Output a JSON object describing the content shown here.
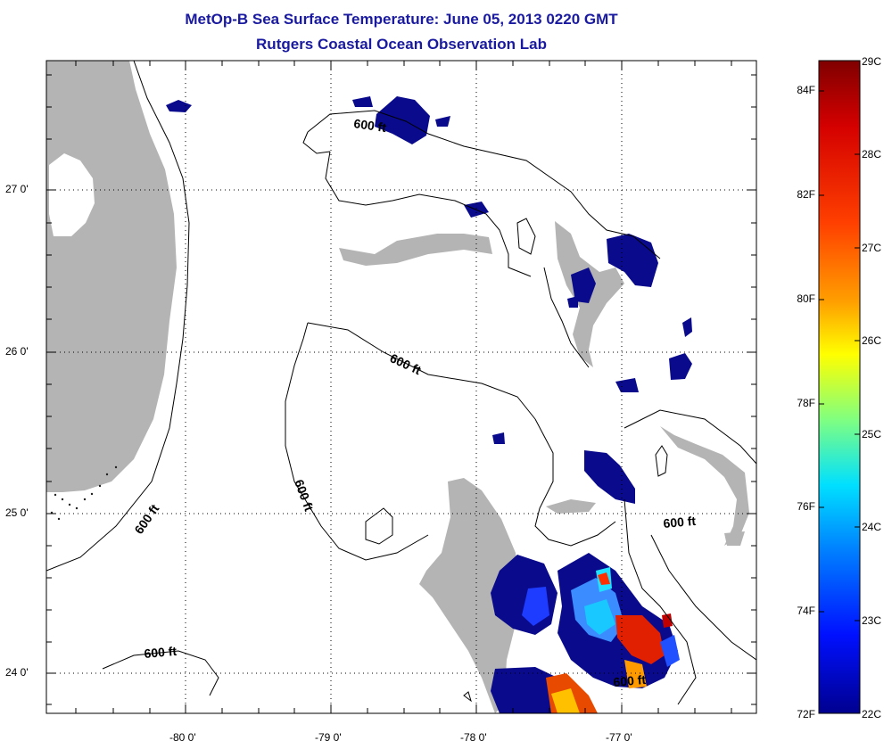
{
  "header": {
    "title": "MetOp-B Sea Surface Temperature:  June 05, 2013 0220 GMT",
    "subtitle": "Rutgers Coastal Ocean Observation Lab"
  },
  "axes": {
    "lat_labels": [
      "27 0'",
      "26 0'",
      "25 0'",
      "24 0'"
    ],
    "lon_labels": [
      "-80 0'",
      "-79 0'",
      "-78 0'",
      "-77 0'"
    ]
  },
  "contours": {
    "label": "600 ft"
  },
  "colorbar": {
    "fahrenheit_labels": [
      "84F",
      "82F",
      "80F",
      "78F",
      "76F",
      "74F",
      "72F"
    ],
    "celsius_labels": [
      "29C",
      "28C",
      "27C",
      "26C",
      "25C",
      "24C",
      "23C",
      "22C"
    ],
    "colors": [
      "#800000",
      "#d40000",
      "#ff4000",
      "#ffa000",
      "#ffff00",
      "#80ff80",
      "#00e0ff",
      "#0080ff",
      "#0010ff",
      "#00008f"
    ]
  },
  "colors": {
    "land": "#b4b4b4",
    "sst_cold": "#0a0a8c",
    "title": "#1a1aa0"
  }
}
